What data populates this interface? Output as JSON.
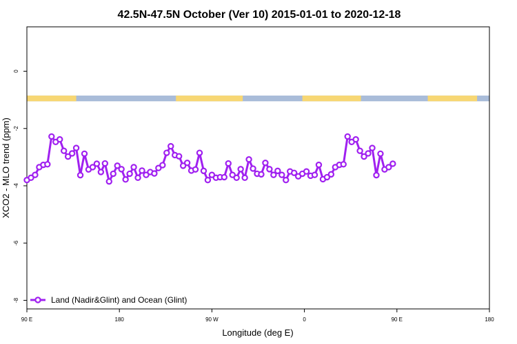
{
  "chart_data": {
    "type": "line",
    "title": "42.5N-47.5N October (Ver 10)   2015-01-01 to 2020-12-18",
    "xlabel": "Longitude (deg E)",
    "ylabel": "XCO2 - MLO trend (ppm)",
    "xlim": [
      90,
      540
    ],
    "ylim": [
      -8.3,
      1.55
    ],
    "x_tick_values": [
      90,
      180,
      270,
      360,
      450,
      540
    ],
    "x_tick_labels": [
      "90 E",
      "180",
      "90 W",
      "0",
      "90 E",
      "180"
    ],
    "y_tick_values": [
      0,
      -2,
      -4,
      -6,
      -8
    ],
    "y_tick_labels": [
      "0",
      "-2",
      "-4",
      "-6",
      "-8"
    ],
    "legend": {
      "label": "Land (Nadir&Glint) and Ocean (Glint)",
      "position": "bottom-left"
    },
    "colors": {
      "line": "#a020f0",
      "land": "#f7d774",
      "ocean": "#a9bcd9"
    },
    "land_ocean_band": {
      "y_range": [
        -0.85,
        -1.05
      ],
      "land_segments": [
        [
          90,
          138
        ],
        [
          235,
          300
        ],
        [
          358,
          415
        ],
        [
          480,
          528
        ]
      ]
    },
    "series": [
      {
        "values": [
          [
            90,
            -3.8
          ],
          [
            94,
            -3.72
          ],
          [
            98,
            -3.62
          ],
          [
            102,
            -3.35
          ],
          [
            106,
            -3.27
          ],
          [
            110,
            -3.25
          ],
          [
            114,
            -2.28
          ],
          [
            118,
            -2.47
          ],
          [
            122,
            -2.38
          ],
          [
            126,
            -2.78
          ],
          [
            130,
            -2.98
          ],
          [
            134,
            -2.87
          ],
          [
            138,
            -2.68
          ],
          [
            142,
            -3.63
          ],
          [
            146,
            -2.88
          ],
          [
            150,
            -3.43
          ],
          [
            154,
            -3.35
          ],
          [
            158,
            -3.23
          ],
          [
            162,
            -3.52
          ],
          [
            166,
            -3.22
          ],
          [
            170,
            -3.85
          ],
          [
            174,
            -3.58
          ],
          [
            178,
            -3.3
          ],
          [
            182,
            -3.42
          ],
          [
            186,
            -3.78
          ],
          [
            190,
            -3.58
          ],
          [
            194,
            -3.35
          ],
          [
            198,
            -3.72
          ],
          [
            202,
            -3.47
          ],
          [
            206,
            -3.62
          ],
          [
            210,
            -3.52
          ],
          [
            214,
            -3.57
          ],
          [
            218,
            -3.38
          ],
          [
            222,
            -3.28
          ],
          [
            226,
            -2.85
          ],
          [
            230,
            -2.62
          ],
          [
            234,
            -2.93
          ],
          [
            238,
            -2.97
          ],
          [
            242,
            -3.3
          ],
          [
            246,
            -3.2
          ],
          [
            250,
            -3.47
          ],
          [
            254,
            -3.43
          ],
          [
            258,
            -2.85
          ],
          [
            262,
            -3.48
          ],
          [
            266,
            -3.8
          ],
          [
            270,
            -3.62
          ],
          [
            274,
            -3.72
          ],
          [
            278,
            -3.7
          ],
          [
            282,
            -3.7
          ],
          [
            286,
            -3.22
          ],
          [
            290,
            -3.62
          ],
          [
            294,
            -3.72
          ],
          [
            298,
            -3.42
          ],
          [
            302,
            -3.72
          ],
          [
            306,
            -3.08
          ],
          [
            310,
            -3.4
          ],
          [
            314,
            -3.58
          ],
          [
            318,
            -3.6
          ],
          [
            322,
            -3.2
          ],
          [
            326,
            -3.42
          ],
          [
            330,
            -3.62
          ],
          [
            334,
            -3.48
          ],
          [
            338,
            -3.62
          ],
          [
            342,
            -3.8
          ],
          [
            346,
            -3.5
          ],
          [
            350,
            -3.55
          ],
          [
            354,
            -3.67
          ],
          [
            358,
            -3.58
          ],
          [
            362,
            -3.5
          ],
          [
            366,
            -3.65
          ],
          [
            370,
            -3.62
          ],
          [
            374,
            -3.27
          ],
          [
            378,
            -3.77
          ],
          [
            382,
            -3.7
          ],
          [
            386,
            -3.6
          ],
          [
            390,
            -3.35
          ],
          [
            394,
            -3.27
          ],
          [
            398,
            -3.25
          ],
          [
            402,
            -2.28
          ],
          [
            406,
            -2.47
          ],
          [
            410,
            -2.38
          ],
          [
            414,
            -2.78
          ],
          [
            418,
            -2.98
          ],
          [
            422,
            -2.87
          ],
          [
            426,
            -2.68
          ],
          [
            430,
            -3.63
          ],
          [
            434,
            -2.88
          ],
          [
            438,
            -3.43
          ],
          [
            442,
            -3.35
          ],
          [
            446,
            -3.23
          ]
        ]
      }
    ]
  }
}
